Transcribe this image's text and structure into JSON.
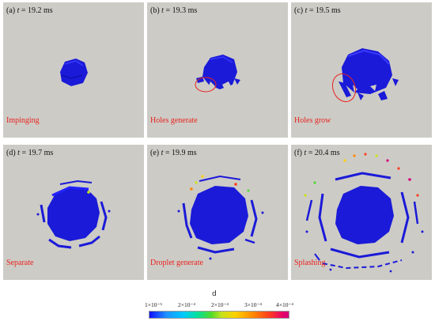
{
  "panels": [
    {
      "tag": "(a)",
      "time_symbol": "t",
      "time_value": "= 19.2 ms",
      "stage": "Impinging"
    },
    {
      "tag": "(b)",
      "time_symbol": "t",
      "time_value": "= 19.3 ms",
      "stage": "Holes generate"
    },
    {
      "tag": "(c)",
      "time_symbol": "t",
      "time_value": "= 19.5 ms",
      "stage": "Holes grow"
    },
    {
      "tag": "(d)",
      "time_symbol": "t",
      "time_value": "= 19.7 ms",
      "stage": "Separate"
    },
    {
      "tag": "(e)",
      "time_symbol": "t",
      "time_value": "= 19.9 ms",
      "stage": "Droplet generate"
    },
    {
      "tag": "(f)",
      "time_symbol": "t",
      "time_value": "= 20.4 ms",
      "stage": "Splashing"
    }
  ],
  "colorbar": {
    "symbol": "d",
    "ticks": [
      "1×10⁻⁵",
      "2×10⁻⁴",
      "2×10⁻⁴",
      "3×10⁻⁴",
      "4×10⁻⁴"
    ],
    "colors": {
      "low": "#1010ff",
      "mid": "#4cdb2e",
      "high": "#d4007a"
    }
  },
  "annotation_color": "#e8231f",
  "background_color": "#cdcbc6"
}
